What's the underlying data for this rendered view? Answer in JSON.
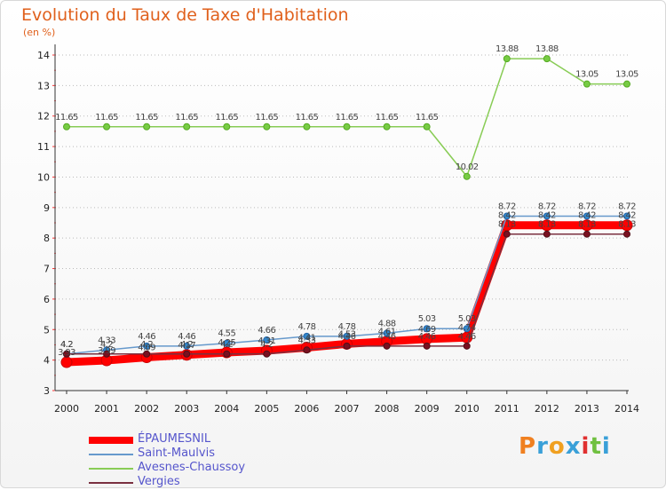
{
  "title": "Evolution du Taux de Taxe d'Habitation",
  "subtitle": "(en %)",
  "logo": {
    "text": "Proxiti",
    "colors": [
      "#f08020",
      "#3aa0d8",
      "#f0a020",
      "#3aa0d8",
      "#e03030",
      "#70c040",
      "#3aa0d8"
    ]
  },
  "chart_data": {
    "type": "line",
    "x": [
      2000,
      2001,
      2002,
      2003,
      2004,
      2005,
      2006,
      2007,
      2008,
      2009,
      2010,
      2011,
      2012,
      2013,
      2014
    ],
    "ylim": [
      3,
      14
    ],
    "yticks": [
      3,
      4,
      5,
      6,
      7,
      8,
      9,
      10,
      11,
      12,
      13,
      14
    ],
    "grid": "horizontal-dotted",
    "legend_position": "bottom-left",
    "series": [
      {
        "name": "ÉPAUMESNIL",
        "color": "#ff0000",
        "values": [
          3.93,
          3.99,
          4.09,
          4.17,
          4.25,
          4.31,
          4.41,
          4.53,
          4.61,
          4.69,
          4.74,
          8.42,
          8.42,
          8.42,
          8.42
        ],
        "labels": [
          "3.93",
          "3.99",
          "4.09",
          "4.17",
          "4.25",
          "4.31",
          "4.41",
          "4.53",
          "4.61",
          "4.69",
          "4.74",
          "8.42",
          "8.42",
          "8.42",
          "8.42"
        ]
      },
      {
        "name": "Saint-Maulvis",
        "color": "#6699cc",
        "values": [
          4.2,
          4.33,
          4.46,
          4.46,
          4.55,
          4.66,
          4.78,
          4.78,
          4.88,
          5.03,
          5.03,
          8.72,
          8.72,
          8.72,
          8.72
        ],
        "labels": [
          "4.2",
          "4.33",
          "4.46",
          "4.46",
          "4.55",
          "4.66",
          "4.78",
          "4.78",
          "4.88",
          "5.03",
          "5.03",
          "8.72",
          "8.72",
          "8.72",
          "8.72"
        ]
      },
      {
        "name": "Avesnes-Chaussoy",
        "color": "#88cc55",
        "values": [
          11.65,
          11.65,
          11.65,
          11.65,
          11.65,
          11.65,
          11.65,
          11.65,
          11.65,
          11.65,
          10.02,
          13.88,
          13.88,
          13.05,
          13.05
        ],
        "labels": [
          "11.65",
          "11.65",
          "11.65",
          "11.65",
          "11.65",
          "11.65",
          "11.65",
          "11.65",
          "11.65",
          "11.65",
          "10.02",
          "13.88",
          "13.88",
          "13.05",
          "13.05"
        ]
      },
      {
        "name": "Vergies",
        "color": "#7a3040",
        "values": [
          4.2,
          4.2,
          4.2,
          4.2,
          4.2,
          4.2,
          4.33,
          4.46,
          4.46,
          4.46,
          4.46,
          8.13,
          8.13,
          8.13,
          8.13
        ],
        "labels": [
          "4.2",
          "4.2",
          "4.2",
          "4.2",
          "4.2",
          "4.2",
          "4.33",
          "4.46",
          "4.46",
          "4.46",
          "4.46",
          "8.13",
          "8.13",
          "8.13",
          "8.13"
        ]
      }
    ]
  }
}
